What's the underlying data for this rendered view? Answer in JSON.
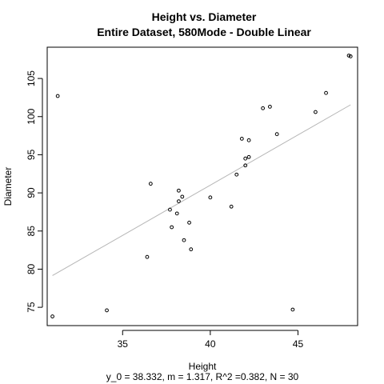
{
  "chart_data": {
    "type": "scatter",
    "title": "Height vs. Diameter",
    "subtitle": "Entire Dataset, 580Mode - Double Linear",
    "xlabel": "Height",
    "ylabel": "Diameter",
    "caption": "y_0 = 38.332, m = 1.317, R^2 =0.382, N = 30",
    "xlim": [
      30.7,
      48.4
    ],
    "ylim": [
      72.6,
      109.1
    ],
    "xticks": [
      35,
      40,
      45
    ],
    "yticks": [
      75,
      80,
      85,
      90,
      95,
      100,
      105
    ],
    "xtick_labels": [
      "35",
      "40",
      "45"
    ],
    "ytick_labels": [
      "75",
      "80",
      "85",
      "90",
      "95",
      "100",
      "105"
    ],
    "grid": false,
    "legend": "none",
    "points": [
      {
        "x": 31.0,
        "y": 73.8
      },
      {
        "x": 31.3,
        "y": 102.7
      },
      {
        "x": 34.1,
        "y": 74.6
      },
      {
        "x": 36.4,
        "y": 81.6
      },
      {
        "x": 36.6,
        "y": 91.2
      },
      {
        "x": 37.7,
        "y": 87.8
      },
      {
        "x": 37.8,
        "y": 85.5
      },
      {
        "x": 38.1,
        "y": 87.3
      },
      {
        "x": 38.2,
        "y": 88.9
      },
      {
        "x": 38.2,
        "y": 90.3
      },
      {
        "x": 38.4,
        "y": 89.5
      },
      {
        "x": 38.5,
        "y": 83.8
      },
      {
        "x": 38.8,
        "y": 86.1
      },
      {
        "x": 38.9,
        "y": 82.6
      },
      {
        "x": 40.0,
        "y": 89.4
      },
      {
        "x": 41.2,
        "y": 88.2
      },
      {
        "x": 41.5,
        "y": 92.4
      },
      {
        "x": 41.8,
        "y": 97.1
      },
      {
        "x": 42.0,
        "y": 93.6
      },
      {
        "x": 42.0,
        "y": 94.5
      },
      {
        "x": 42.2,
        "y": 94.7
      },
      {
        "x": 42.2,
        "y": 96.9
      },
      {
        "x": 43.0,
        "y": 101.1
      },
      {
        "x": 43.4,
        "y": 101.3
      },
      {
        "x": 43.8,
        "y": 97.7
      },
      {
        "x": 44.7,
        "y": 74.7
      },
      {
        "x": 46.0,
        "y": 100.6
      },
      {
        "x": 46.6,
        "y": 103.1
      },
      {
        "x": 47.9,
        "y": 108.0
      },
      {
        "x": 48.0,
        "y": 107.9
      }
    ],
    "fit_line": {
      "intercept": 38.332,
      "slope": 1.317,
      "x": [
        31.0,
        48.0
      ]
    },
    "colors": {
      "points": "#000000",
      "fit_line": "#b5b5b5",
      "axes": "#000000",
      "background": "#ffffff"
    }
  }
}
